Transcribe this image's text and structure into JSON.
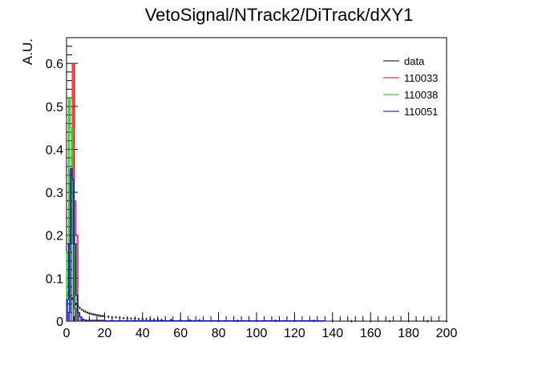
{
  "chart_data": {
    "type": "histogram",
    "title": "VetoSignal/NTrack2/DiTrack/dXY1",
    "xlabel": "",
    "ylabel": "A.U.",
    "xlim": [
      0,
      200
    ],
    "ylim": [
      0,
      0.66
    ],
    "x_ticks": [
      0,
      20,
      40,
      60,
      80,
      100,
      120,
      140,
      160,
      180,
      200
    ],
    "y_ticks": [
      0,
      0.1,
      0.2,
      0.3,
      0.4,
      0.5,
      0.6
    ],
    "y_tick_labels": [
      "0",
      "0.1",
      "0.2",
      "0.3",
      "0.4",
      "0.5",
      "0.6"
    ],
    "legend": {
      "placement": "top-right"
    },
    "series": [
      {
        "name": "data",
        "color": "#000000",
        "style": "points",
        "x": [
          1,
          2,
          3,
          4,
          5,
          6,
          7,
          8,
          9,
          10,
          11,
          12,
          13,
          14,
          15,
          16,
          17,
          18,
          19,
          20,
          22,
          24,
          26,
          28,
          30,
          32,
          34,
          36,
          38,
          40,
          42,
          44,
          46,
          48,
          50,
          55,
          60,
          65,
          70,
          80,
          90,
          100,
          110,
          120,
          130,
          140,
          150,
          160,
          170,
          180,
          190,
          200
        ],
        "values": [
          0.065,
          0.058,
          0.052,
          0.046,
          0.04,
          0.035,
          0.031,
          0.027,
          0.024,
          0.022,
          0.02,
          0.018,
          0.017,
          0.016,
          0.015,
          0.014,
          0.013,
          0.012,
          0.012,
          0.011,
          0.01,
          0.009,
          0.009,
          0.008,
          0.007,
          0.007,
          0.006,
          0.006,
          0.005,
          0.005,
          0.005,
          0.004,
          0.004,
          0.004,
          0.003,
          0.003,
          0.002,
          0.002,
          0.002,
          0.001,
          0.001,
          0.001,
          0.001,
          0.001,
          0.001,
          0.0,
          0.0,
          0.0,
          0.0,
          0.0,
          0.0,
          0.0
        ]
      },
      {
        "name": "110033",
        "color": "#ff0000",
        "style": "step",
        "bin_width": 1,
        "x": [
          1,
          2,
          3,
          4,
          5
        ],
        "values": [
          0.02,
          0.32,
          0.6,
          0.28,
          0.2
        ]
      },
      {
        "name": "110038",
        "color": "#00cc00",
        "style": "step",
        "bin_width": 1,
        "x": [
          0,
          1,
          2,
          3,
          4
        ],
        "values": [
          0.16,
          0.52,
          0.45,
          0.18,
          0.03
        ]
      },
      {
        "name": "110051",
        "color": "#0000cc",
        "style": "step",
        "bin_width": 1,
        "x": [
          0,
          1,
          2,
          3,
          4,
          5,
          6,
          7,
          8,
          9,
          10,
          20,
          30,
          40,
          50,
          60,
          70,
          80,
          90,
          100,
          110,
          120,
          130,
          136
        ],
        "values": [
          0.05,
          0.18,
          0.355,
          0.33,
          0.18,
          0.06,
          0.02,
          0.01,
          0.005,
          0.003,
          0.002,
          0.001,
          0.001,
          0.001,
          0.001,
          0.001,
          0.001,
          0.001,
          0.001,
          0.001,
          0.001,
          0.001,
          0.001,
          0.0
        ]
      }
    ]
  }
}
